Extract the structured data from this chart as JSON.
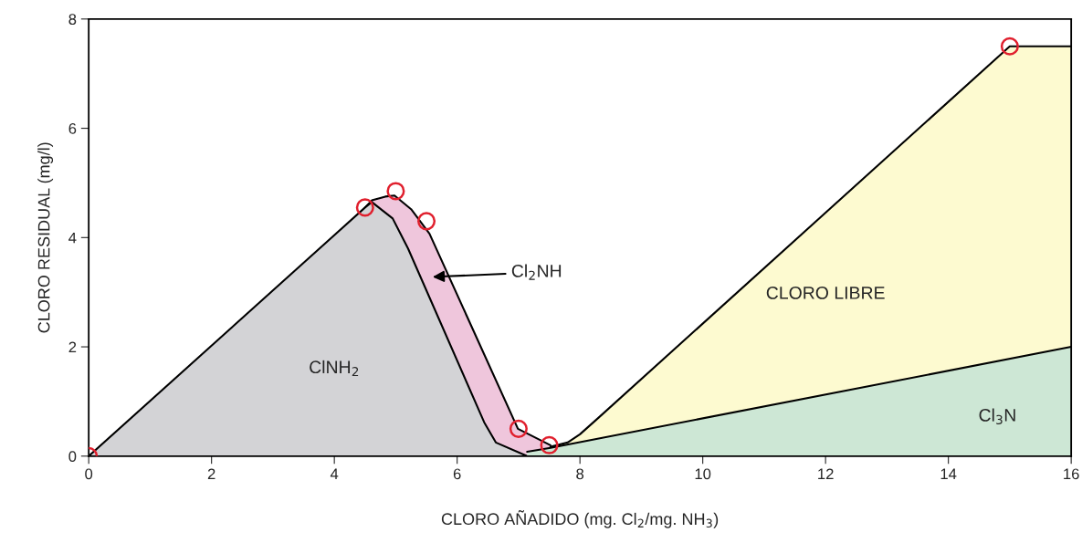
{
  "chart_data": {
    "type": "area",
    "xlabel": "CLORO AÑADIDO (mg. Cl$_{2}$/mg. NH$_{3}$)",
    "ylabel": "CLORO RESIDUAL (mg/l)",
    "xlim": [
      0,
      16
    ],
    "ylim": [
      0,
      8
    ],
    "xticks": [
      0,
      2,
      4,
      6,
      8,
      10,
      12,
      14,
      16
    ],
    "yticks": [
      0,
      2,
      4,
      6,
      8
    ],
    "grid": false,
    "legend": false,
    "series": [
      {
        "color": "#efc6dc",
        "x": [
          4.5,
          4.61,
          4.83,
          4.98,
          5.25,
          5.55,
          6.99,
          7.52
        ],
        "values": [
          4.55,
          4.68,
          4.75,
          4.77,
          4.52,
          4.07,
          0.5,
          0.2
        ]
      },
      {
        "color": "#d3d3d6",
        "x": [
          0,
          4.5,
          4.61,
          4.95,
          5.2,
          6.44,
          6.63,
          7.14
        ],
        "values": [
          0,
          4.55,
          4.65,
          4.35,
          3.8,
          0.62,
          0.25,
          0
        ]
      },
      {
        "color": "#fdfad0",
        "x": [
          7.52,
          7.8,
          8.0,
          8.3,
          15,
          16
        ],
        "values": [
          0.17,
          0.25,
          0.4,
          0.7,
          7.5,
          7.5
        ]
      },
      {
        "color": "#cde7d5",
        "x": [
          7.14,
          7.52,
          16
        ],
        "values": [
          0.08,
          0.15,
          2.0
        ]
      },
      {
        "type": "scatter",
        "color": "#e0202e",
        "marker": "circle",
        "x": [
          0,
          4.5,
          5.0,
          5.5,
          7.0,
          7.5,
          15
        ],
        "values": [
          0,
          4.55,
          4.85,
          4.3,
          0.5,
          0.2,
          7.5
        ]
      }
    ],
    "annotations": [
      "ClNH$_{2}$",
      "Cl$_{2}$NH",
      "CLORO LIBRE",
      "Cl$_{3}$N"
    ]
  }
}
